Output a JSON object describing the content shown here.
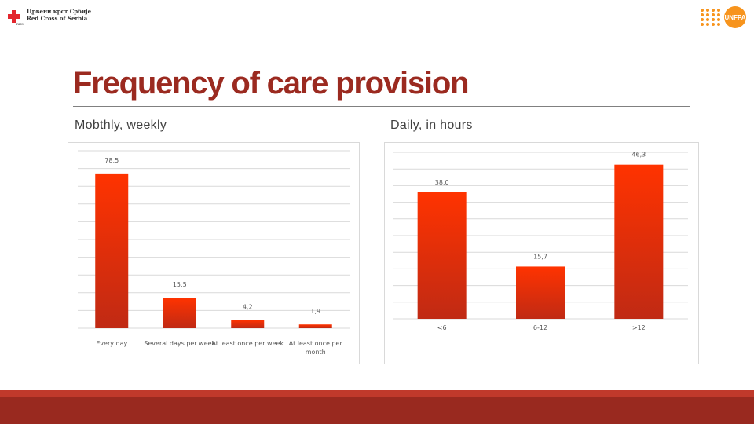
{
  "header": {
    "org_left_line1": "Црвени крст Србије",
    "org_left_line2": "Red Cross of Serbia",
    "org_left_small": "RKS",
    "org_right": "UNFPA"
  },
  "title": "Frequency of care provision",
  "subtitles": {
    "left": "Mobthly, weekly",
    "right": "Daily, in hours"
  },
  "colors": {
    "bar_top": "#ff3300",
    "bar_bottom": "#c02a14",
    "title": "#9b2a20",
    "footer": "#99291f"
  },
  "chart_data": [
    {
      "type": "bar",
      "title": "Mobthly, weekly",
      "categories": [
        "Every day",
        "Several days per week",
        "At least once per week",
        "At least once per month"
      ],
      "values": [
        78.5,
        15.5,
        4.2,
        1.9
      ],
      "value_labels": [
        "78,5",
        "15,5",
        "4,2",
        "1,9"
      ],
      "ylim": [
        0,
        90
      ],
      "grid": true
    },
    {
      "type": "bar",
      "title": "Daily, in hours",
      "categories": [
        "<6",
        "6-12",
        ">12"
      ],
      "values": [
        38.0,
        15.7,
        46.3
      ],
      "value_labels": [
        "38,0",
        "15,7",
        "46,3"
      ],
      "ylim": [
        0,
        50
      ],
      "grid": true
    }
  ]
}
